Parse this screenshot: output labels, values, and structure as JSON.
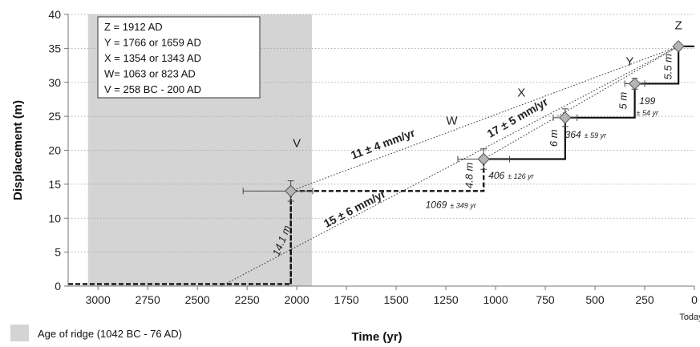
{
  "chart_data": {
    "type": "line",
    "xlabel": "Time (yr)",
    "ylabel": "Displacement (m)",
    "xlim": [
      3150,
      0
    ],
    "ylim": [
      0,
      40
    ],
    "x_ticks": [
      3000,
      2750,
      2500,
      2250,
      2000,
      1750,
      1500,
      1250,
      1000,
      750,
      500,
      250,
      0
    ],
    "y_ticks": [
      0,
      5,
      10,
      15,
      20,
      25,
      30,
      35,
      40
    ],
    "x_zero_label": "Today",
    "grid": "horizontal-dotted",
    "shaded_region": {
      "x": [
        3050,
        1924
      ],
      "label": "Age of ridge (1042 BC - 76 AD)"
    },
    "event_legend": [
      "Z = 1912 AD",
      "Y = 1766 or 1659 AD",
      "X = 1354 or 1343 AD",
      "W= 1063 or   823 AD",
      "V = 258 BC - 200 AD"
    ],
    "series": [
      {
        "style": "solid-step",
        "x": [
          1060,
          650,
          650,
          300,
          300,
          80,
          80,
          0
        ],
        "y": [
          18.7,
          18.7,
          24.8,
          24.8,
          29.8,
          29.8,
          35.3,
          35.3
        ]
      },
      {
        "style": "dashed-step",
        "x": [
          3150,
          2030,
          2030,
          1060,
          1060
        ],
        "y": [
          0.3,
          0.3,
          14,
          14,
          18.7
        ]
      }
    ],
    "rate_lines": [
      {
        "label": "11 ± 4  mm/yr",
        "x": [
          2030,
          80
        ],
        "y": [
          14,
          35.3
        ]
      },
      {
        "label": "15 ± 6 mm/yr",
        "x": [
          2380,
          80
        ],
        "y": [
          0,
          35.3
        ]
      },
      {
        "label": "17 ± 5  mm/yr",
        "x": [
          1060,
          80
        ],
        "y": [
          18.7,
          35.3
        ]
      }
    ],
    "event_points": [
      {
        "label": "V",
        "x": 2030,
        "y": 14,
        "x_err": [
          2270,
          1920
        ],
        "y_err": [
          12.5,
          15.5
        ]
      },
      {
        "label": "W",
        "x": 1060,
        "y": 18.7,
        "x_err": [
          1190,
          930
        ],
        "y_err": [
          17.2,
          20.2
        ]
      },
      {
        "label": "X",
        "x": 650,
        "y": 24.8,
        "x_err": [
          710,
          590
        ],
        "y_err": [
          23.5,
          26.1
        ]
      },
      {
        "label": "Y",
        "x": 300,
        "y": 29.8,
        "x_err": [
          350,
          250
        ],
        "y_err": [
          29,
          30.6
        ]
      },
      {
        "label": "Z",
        "x": 80,
        "y": 35.3,
        "x_err": [
          80,
          80
        ],
        "y_err": [
          35.3,
          35.3
        ]
      }
    ],
    "event_labels": [
      {
        "text": "V",
        "x": 2000,
        "y": 20.5
      },
      {
        "text": "W",
        "x": 1220,
        "y": 23.8
      },
      {
        "text": "X",
        "x": 870,
        "y": 27.9
      },
      {
        "text": "Y",
        "x": 325,
        "y": 32.5
      },
      {
        "text": "Z",
        "x": 80,
        "y": 37.8
      }
    ],
    "interval_labels": [
      {
        "value": "1069",
        "unc": "± 349 yr",
        "x": 1245,
        "y": 11.5
      },
      {
        "value": "406",
        "unc": "± 126 yr",
        "x": 955,
        "y": 15.8
      },
      {
        "value": "364",
        "unc": "± 59 yr",
        "x": 570,
        "y": 21.8
      },
      {
        "value": "199",
        "unc": "± 54 yr",
        "x": 237,
        "y": 26.8
      }
    ],
    "offset_labels": [
      {
        "text": "14.1 m",
        "x": 2060,
        "y": 6.5
      },
      {
        "text": "4.8 m",
        "x": 1115,
        "y": 16.3
      },
      {
        "text": "6 m",
        "x": 690,
        "y": 21.8
      },
      {
        "text": "5 m",
        "x": 340,
        "y": 27.3
      },
      {
        "text": "5.5 m",
        "x": 115,
        "y": 32.3
      }
    ]
  }
}
